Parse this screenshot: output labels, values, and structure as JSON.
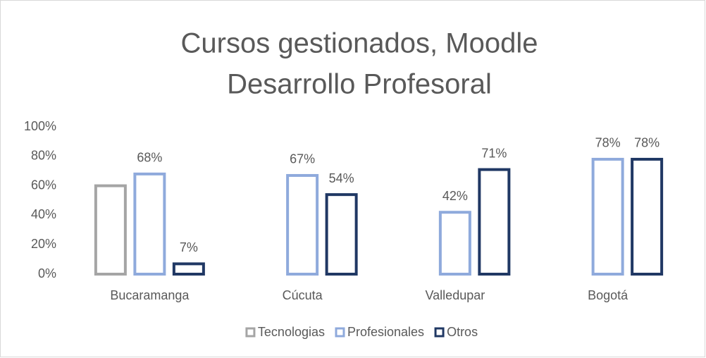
{
  "chart_data": {
    "type": "bar",
    "title": [
      "Cursos gestionados, Moodle",
      "Desarrollo Profesoral"
    ],
    "categories": [
      "Bucaramanga",
      "Cúcuta",
      "Valledupar",
      "Bogotá"
    ],
    "series": [
      {
        "name": "Tecnologias",
        "color": "#a5a5a5",
        "values": [
          60,
          null,
          null,
          null
        ]
      },
      {
        "name": "Profesionales",
        "color": "#8faadc",
        "values": [
          68,
          67,
          42,
          78
        ],
        "value_labels": [
          "68%",
          "67%",
          "42%",
          "78%"
        ]
      },
      {
        "name": "Otros",
        "color": "#203864",
        "values": [
          7,
          54,
          71,
          78
        ],
        "value_labels": [
          "7%",
          "54%",
          "71%",
          "78%"
        ]
      }
    ],
    "ylim": [
      0,
      100
    ],
    "yticks": [
      {
        "value": 0,
        "label": "0%"
      },
      {
        "value": 20,
        "label": "20%"
      },
      {
        "value": 40,
        "label": "40%"
      },
      {
        "value": 60,
        "label": "60%"
      },
      {
        "value": 80,
        "label": "80%"
      },
      {
        "value": 100,
        "label": "100%"
      }
    ],
    "grid": false,
    "legend": "bottom"
  }
}
